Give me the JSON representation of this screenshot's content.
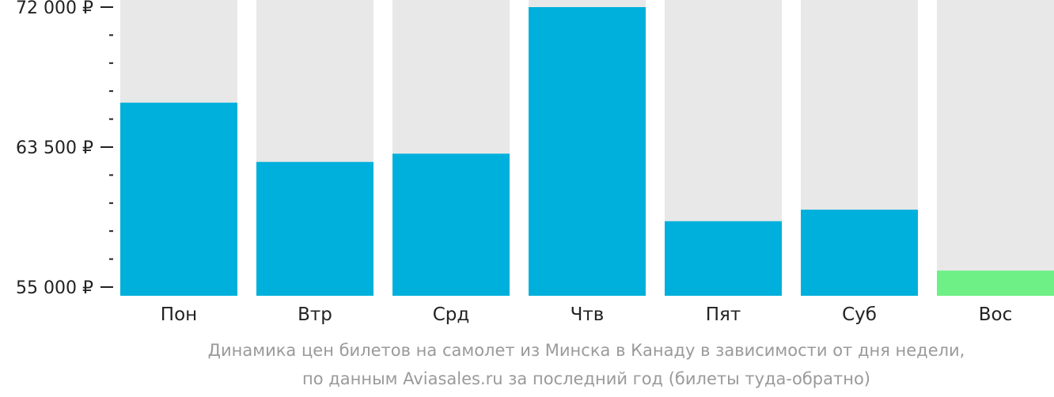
{
  "chart_data": {
    "type": "bar",
    "categories": [
      "Пон",
      "Втр",
      "Срд",
      "Чтв",
      "Пят",
      "Суб",
      "Вос"
    ],
    "values": [
      66200,
      62600,
      63100,
      72000,
      59000,
      59700,
      56000
    ],
    "ylim": [
      55000,
      72000
    ],
    "yticks": [
      {
        "value": 72000,
        "label": "72 000 ₽"
      },
      {
        "value": 63500,
        "label": "63 500 ₽"
      },
      {
        "value": 55000,
        "label": "55 000 ₽"
      }
    ],
    "minor_ticks": [
      70300,
      68600,
      66900,
      65200,
      61800,
      60100,
      58400,
      56700
    ],
    "colors": {
      "bar": "#00b0dc",
      "highlight": "#6ef086",
      "background_bar": "#e8e8e8",
      "axis": "#222222"
    },
    "highlight_index": 6,
    "caption": [
      "Динамика цен билетов на самолет из Минска в Канаду в зависимости от дня недели,",
      "по данным Aviasales.ru за последний год (билеты туда-обратно)"
    ]
  }
}
